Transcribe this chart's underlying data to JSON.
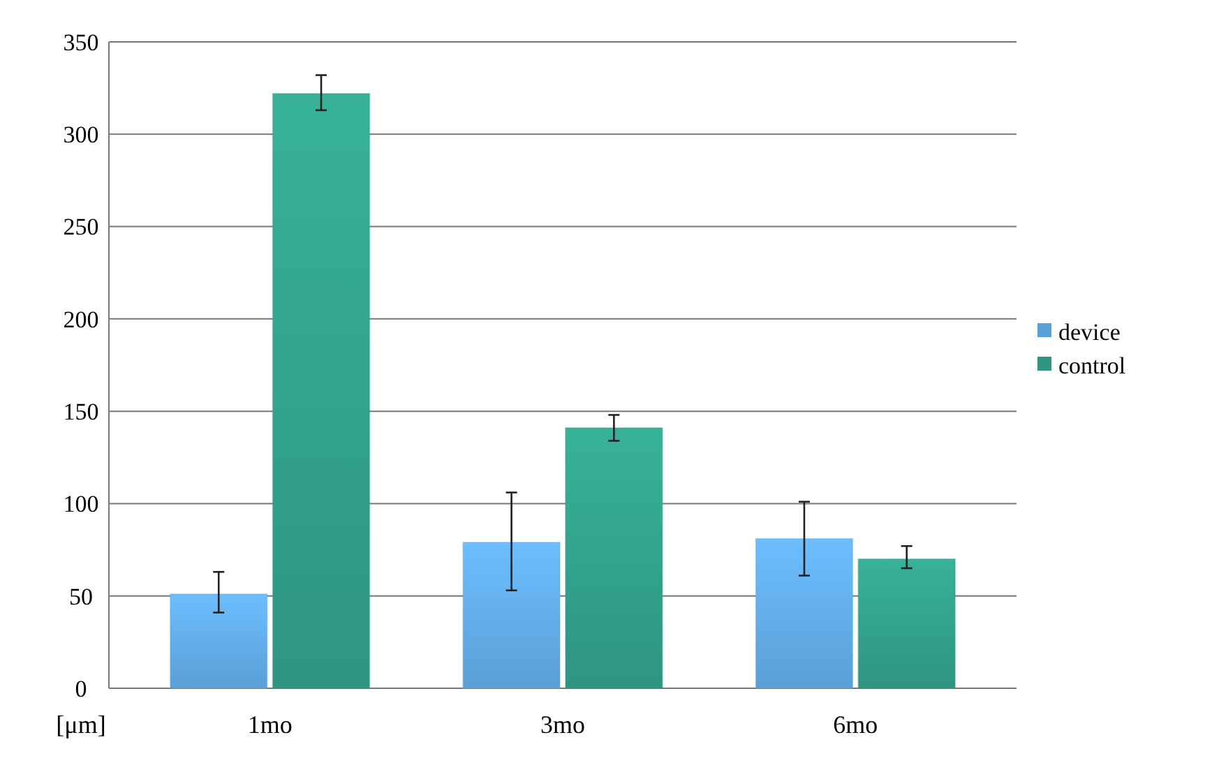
{
  "chart_data": {
    "type": "bar",
    "ylabel": "[μm]",
    "categories": [
      "1mo",
      "3mo",
      "6mo"
    ],
    "series": [
      {
        "name": "device",
        "color": "#5a9fd6",
        "values": [
          51,
          79,
          81
        ],
        "errors": [
          [
            41,
            63
          ],
          [
            53,
            106
          ],
          [
            61,
            101
          ]
        ]
      },
      {
        "name": "control",
        "color": "#2e9580",
        "values": [
          322,
          141,
          70
        ],
        "errors": [
          [
            313,
            332
          ],
          [
            134,
            148
          ],
          [
            65,
            77
          ]
        ]
      }
    ],
    "ylim": [
      0,
      350
    ],
    "yticks": [
      0,
      50,
      100,
      150,
      200,
      250,
      300,
      350
    ],
    "grid": "y",
    "legend": "right"
  }
}
